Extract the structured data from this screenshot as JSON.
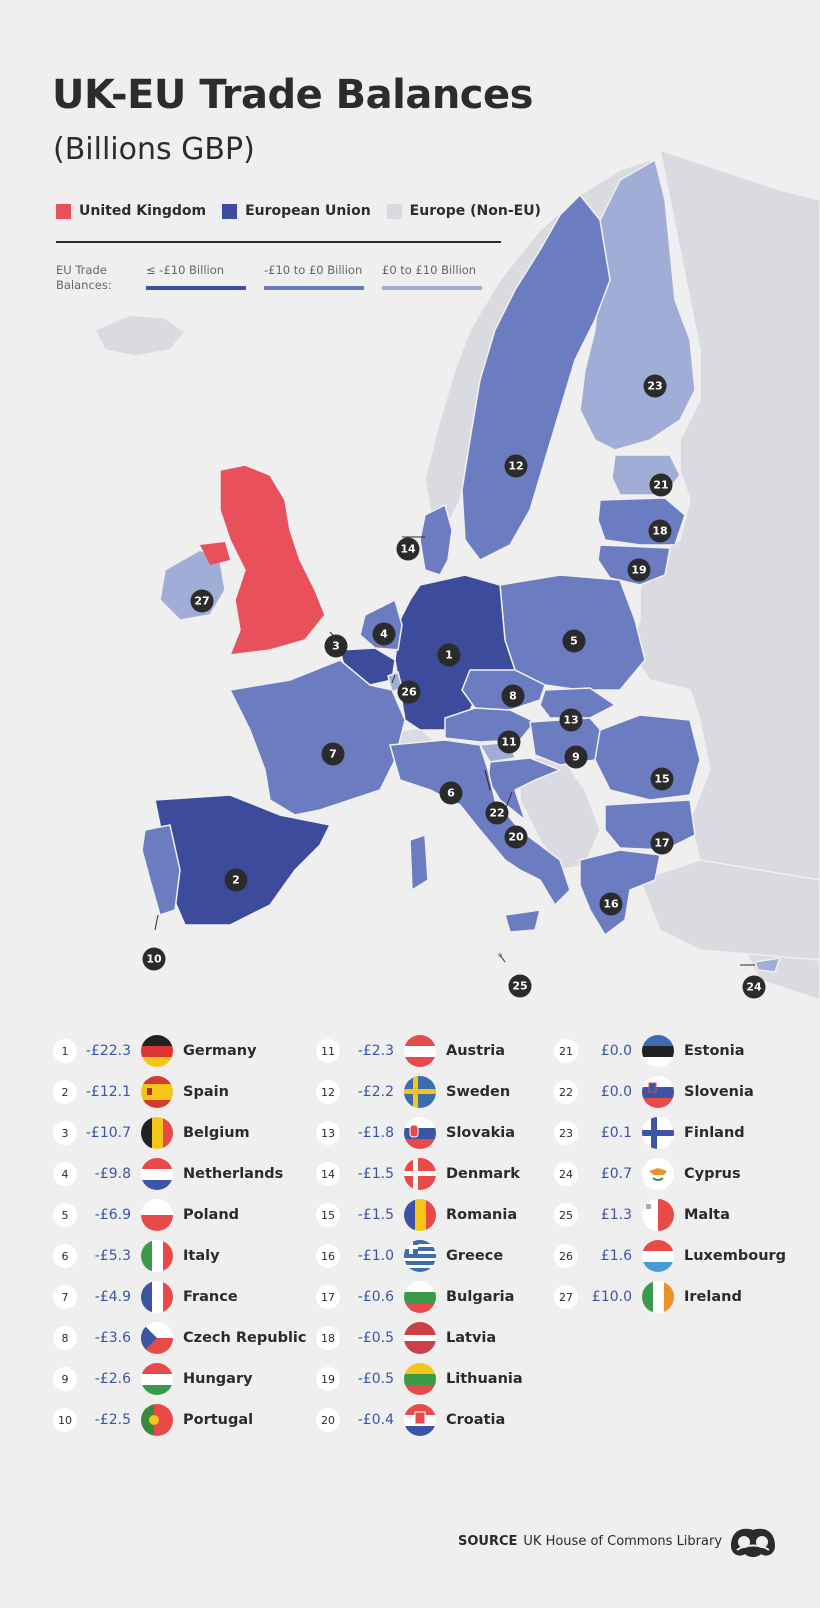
{
  "header": {
    "title": "UK-EU Trade Balances",
    "subtitle": "(Billions GBP)"
  },
  "legend": {
    "items": [
      {
        "label": "United Kingdom",
        "color": "#e8505b"
      },
      {
        "label": "European Union",
        "color": "#3c4b9b"
      },
      {
        "label": "Europe (Non-EU)",
        "color": "#d9dbe0"
      }
    ]
  },
  "balance_legend": {
    "title": "EU Trade Balances:",
    "bins": [
      {
        "label": "≤ -£10 Billion",
        "color": "#3c4b9b"
      },
      {
        "label": "-£10 to £0 Billion",
        "color": "#6c7cc0"
      },
      {
        "label": "£0 to £10 Billion",
        "color": "#a0add6"
      }
    ]
  },
  "map": {
    "badges": [
      "1",
      "2",
      "3",
      "4",
      "5",
      "6",
      "7",
      "8",
      "9",
      "10",
      "11",
      "12",
      "13",
      "14",
      "15",
      "16",
      "17",
      "18",
      "19",
      "20",
      "21",
      "22",
      "23",
      "24",
      "25",
      "26",
      "27"
    ]
  },
  "countries": [
    {
      "rank": "1",
      "value": "-£22.3",
      "name": "Germany",
      "flag": "germany-flag-icon"
    },
    {
      "rank": "2",
      "value": "-£12.1",
      "name": "Spain",
      "flag": "spain-flag-icon"
    },
    {
      "rank": "3",
      "value": "-£10.7",
      "name": "Belgium",
      "flag": "belgium-flag-icon"
    },
    {
      "rank": "4",
      "value": "-£9.8",
      "name": "Netherlands",
      "flag": "netherlands-flag-icon"
    },
    {
      "rank": "5",
      "value": "-£6.9",
      "name": "Poland",
      "flag": "poland-flag-icon"
    },
    {
      "rank": "6",
      "value": "-£5.3",
      "name": "Italy",
      "flag": "italy-flag-icon"
    },
    {
      "rank": "7",
      "value": "-£4.9",
      "name": "France",
      "flag": "france-flag-icon"
    },
    {
      "rank": "8",
      "value": "-£3.6",
      "name": "Czech Republic",
      "flag": "czech-flag-icon"
    },
    {
      "rank": "9",
      "value": "-£2.6",
      "name": "Hungary",
      "flag": "hungary-flag-icon"
    },
    {
      "rank": "10",
      "value": "-£2.5",
      "name": "Portugal",
      "flag": "portugal-flag-icon"
    },
    {
      "rank": "11",
      "value": "-£2.3",
      "name": "Austria",
      "flag": "austria-flag-icon"
    },
    {
      "rank": "12",
      "value": "-£2.2",
      "name": "Sweden",
      "flag": "sweden-flag-icon"
    },
    {
      "rank": "13",
      "value": "-£1.8",
      "name": "Slovakia",
      "flag": "slovakia-flag-icon"
    },
    {
      "rank": "14",
      "value": "-£1.5",
      "name": "Denmark",
      "flag": "denmark-flag-icon"
    },
    {
      "rank": "15",
      "value": "-£1.5",
      "name": "Romania",
      "flag": "romania-flag-icon"
    },
    {
      "rank": "16",
      "value": "-£1.0",
      "name": "Greece",
      "flag": "greece-flag-icon"
    },
    {
      "rank": "17",
      "value": "-£0.6",
      "name": "Bulgaria",
      "flag": "bulgaria-flag-icon"
    },
    {
      "rank": "18",
      "value": "-£0.5",
      "name": "Latvia",
      "flag": "latvia-flag-icon"
    },
    {
      "rank": "19",
      "value": "-£0.5",
      "name": "Lithuania",
      "flag": "lithuania-flag-icon"
    },
    {
      "rank": "20",
      "value": "-£0.4",
      "name": "Croatia",
      "flag": "croatia-flag-icon"
    },
    {
      "rank": "21",
      "value": "£0.0",
      "name": "Estonia",
      "flag": "estonia-flag-icon"
    },
    {
      "rank": "22",
      "value": "£0.0",
      "name": "Slovenia",
      "flag": "slovenia-flag-icon"
    },
    {
      "rank": "23",
      "value": "£0.1",
      "name": "Finland",
      "flag": "finland-flag-icon"
    },
    {
      "rank": "24",
      "value": "£0.7",
      "name": "Cyprus",
      "flag": "cyprus-flag-icon"
    },
    {
      "rank": "25",
      "value": "£1.3",
      "name": "Malta",
      "flag": "malta-flag-icon"
    },
    {
      "rank": "26",
      "value": "£1.6",
      "name": "Luxembourg",
      "flag": "luxembourg-flag-icon"
    },
    {
      "rank": "27",
      "value": "£10.0",
      "name": "Ireland",
      "flag": "ireland-flag-icon"
    }
  ],
  "source": {
    "label": "SOURCE",
    "text": "UK House of Commons Library"
  },
  "colors": {
    "value_text": "#3c54a4",
    "non_eu": "#d9dbe0"
  }
}
